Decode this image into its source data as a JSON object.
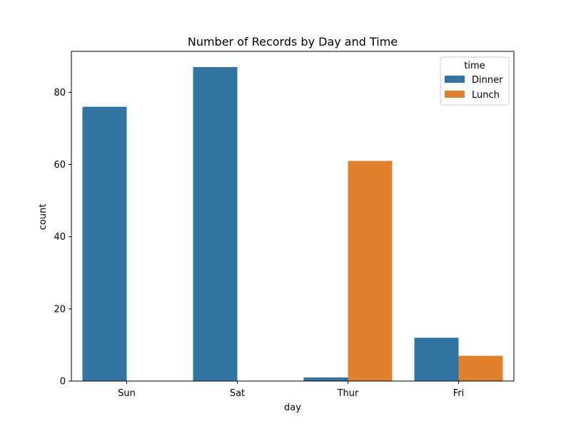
{
  "chart_data": {
    "type": "bar",
    "title": "Number of Records by Day and Time",
    "xlabel": "day",
    "ylabel": "count",
    "categories": [
      "Sun",
      "Sat",
      "Thur",
      "Fri"
    ],
    "series": [
      {
        "name": "Dinner",
        "color": "#3274a1",
        "values": [
          76,
          87,
          1,
          12
        ]
      },
      {
        "name": "Lunch",
        "color": "#e1812c",
        "values": [
          0,
          0,
          61,
          7
        ]
      }
    ],
    "ylim": [
      0,
      91.35
    ],
    "yticks": [
      0,
      20,
      40,
      60,
      80
    ],
    "grid": false,
    "legend": {
      "title": "time",
      "placement": "top-right"
    }
  }
}
